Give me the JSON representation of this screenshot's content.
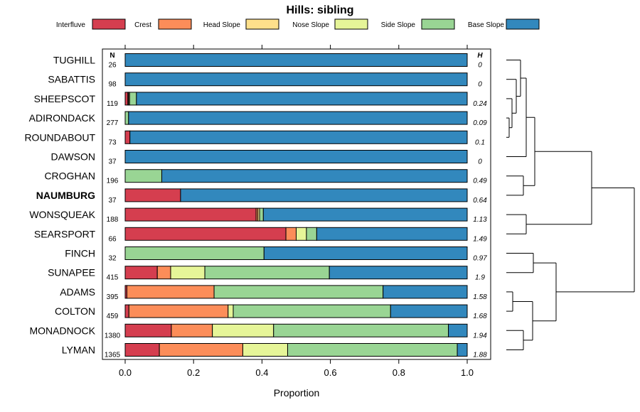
{
  "chart_data": {
    "type": "bar",
    "stacked": true,
    "orientation": "horizontal",
    "title": "Hills: sibling",
    "xlabel": "Proportion",
    "ylabel": "",
    "xlim": [
      0,
      1
    ],
    "x_ticks": [
      "0.0",
      "0.2",
      "0.4",
      "0.6",
      "0.8",
      "1.0"
    ],
    "n_header": "N",
    "h_header": "H",
    "legend_position": "top",
    "highlight_category": "NAUMBURG",
    "series": [
      {
        "name": "Interfluve",
        "color": "#D53E4F"
      },
      {
        "name": "Crest",
        "color": "#FC8D59"
      },
      {
        "name": "Head Slope",
        "color": "#FEE08B"
      },
      {
        "name": "Nose Slope",
        "color": "#E6F598"
      },
      {
        "name": "Side Slope",
        "color": "#99D594"
      },
      {
        "name": "Base Slope",
        "color": "#3288BD"
      }
    ],
    "categories": [
      {
        "name": "TUGHILL",
        "n": "26",
        "h": "0",
        "values": [
          0,
          0,
          0,
          0,
          0,
          1.0
        ]
      },
      {
        "name": "SABATTIS",
        "n": "98",
        "h": "0",
        "values": [
          0,
          0,
          0,
          0,
          0,
          1.0
        ]
      },
      {
        "name": "SHEEPSCOT",
        "n": "119",
        "h": "0.24",
        "values": [
          0.008,
          0.002,
          0.003,
          0.0,
          0.02,
          0.967
        ]
      },
      {
        "name": "ADIRONDACK",
        "n": "277",
        "h": "0.09",
        "values": [
          0,
          0,
          0,
          0,
          0.01,
          0.99
        ]
      },
      {
        "name": "ROUNDABOUT",
        "n": "73",
        "h": "0.1",
        "values": [
          0.014,
          0,
          0,
          0,
          0,
          0.986
        ]
      },
      {
        "name": "DAWSON",
        "n": "37",
        "h": "0",
        "values": [
          0,
          0,
          0,
          0,
          0,
          1.0
        ]
      },
      {
        "name": "CROGHAN",
        "n": "196",
        "h": "0.49",
        "values": [
          0,
          0,
          0,
          0,
          0.107,
          0.893
        ]
      },
      {
        "name": "NAUMBURG",
        "n": "37",
        "h": "0.64",
        "values": [
          0.162,
          0,
          0,
          0,
          0,
          0.838
        ]
      },
      {
        "name": "WONSQUEAK",
        "n": "188",
        "h": "1.13",
        "values": [
          0.383,
          0.005,
          0.005,
          0.0,
          0.011,
          0.596
        ]
      },
      {
        "name": "SEARSPORT",
        "n": "66",
        "h": "1.49",
        "values": [
          0.47,
          0.03,
          0.0,
          0.03,
          0.03,
          0.44
        ]
      },
      {
        "name": "FINCH",
        "n": "32",
        "h": "0.97",
        "values": [
          0,
          0,
          0,
          0,
          0.406,
          0.594
        ]
      },
      {
        "name": "SUNAPEE",
        "n": "415",
        "h": "1.9",
        "values": [
          0.094,
          0.039,
          0.0,
          0.1,
          0.364,
          0.403
        ]
      },
      {
        "name": "ADAMS",
        "n": "395",
        "h": "1.58",
        "values": [
          0.005,
          0.255,
          0.0,
          0.0,
          0.494,
          0.246
        ]
      },
      {
        "name": "COLTON",
        "n": "459",
        "h": "1.68",
        "values": [
          0.011,
          0.29,
          0.0,
          0.015,
          0.46,
          0.224
        ]
      },
      {
        "name": "MONADNOCK",
        "n": "1380",
        "h": "1.94",
        "values": [
          0.135,
          0.12,
          0.0,
          0.179,
          0.511,
          0.055
        ]
      },
      {
        "name": "LYMAN",
        "n": "1365",
        "h": "1.88",
        "values": [
          0.1,
          0.244,
          0.0,
          0.131,
          0.496,
          0.029
        ]
      }
    ]
  }
}
